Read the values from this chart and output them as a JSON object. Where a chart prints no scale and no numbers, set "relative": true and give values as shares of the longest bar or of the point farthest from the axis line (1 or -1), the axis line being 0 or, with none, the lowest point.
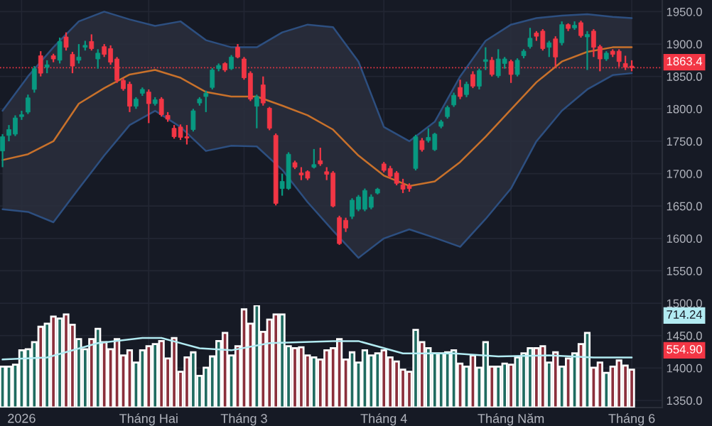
{
  "chart_data": [
    {
      "type": "candlestick",
      "categories": [
        null,
        null,
        null,
        "2026",
        null,
        null,
        null,
        null,
        null,
        null,
        null,
        null,
        null,
        null,
        null,
        null,
        null,
        null,
        null,
        null,
        null,
        null,
        null,
        "Tháng Hai",
        null,
        null,
        null,
        null,
        null,
        null,
        null,
        null,
        null,
        null,
        null,
        null,
        null,
        null,
        "Tháng 3",
        null,
        null,
        null,
        null,
        null,
        null,
        null,
        null,
        null,
        null,
        null,
        null,
        null,
        null,
        null,
        null,
        null,
        null,
        null,
        null,
        null,
        "Tháng 4",
        null,
        null,
        null,
        null,
        null,
        null,
        null,
        null,
        null,
        null,
        null,
        null,
        null,
        null,
        null,
        null,
        null,
        null,
        null,
        "Tháng Năm",
        null,
        null,
        null,
        null,
        null,
        null,
        null,
        null,
        null,
        null,
        null,
        null,
        null,
        null,
        null,
        null,
        null,
        null,
        "Tháng 6"
      ],
      "ohlc": [
        [
          1735,
          1761,
          1710,
          1757
        ],
        [
          1759,
          1775,
          1750,
          1768
        ],
        [
          1761,
          1790,
          1758,
          1786
        ],
        [
          1788,
          1797,
          1783,
          1791
        ],
        [
          1795,
          1822,
          1792,
          1817
        ],
        [
          1830,
          1866,
          1825,
          1862
        ],
        [
          1882,
          1889,
          1850,
          1855
        ],
        [
          1864,
          1875,
          1855,
          1868
        ],
        [
          1882,
          1885,
          1872,
          1877
        ],
        [
          1875,
          1910,
          1870,
          1904
        ],
        [
          1911,
          1918,
          1890,
          1895
        ],
        [
          1884,
          1888,
          1855,
          1866
        ],
        [
          1875,
          1900,
          1870,
          1880
        ],
        [
          1895,
          1905,
          1890,
          1898
        ],
        [
          1904,
          1915,
          1890,
          1893
        ],
        [
          1877,
          1892,
          1862,
          1886
        ],
        [
          1896,
          1900,
          1880,
          1884
        ],
        [
          1893,
          1898,
          1868,
          1872
        ],
        [
          1877,
          1880,
          1840,
          1844
        ],
        [
          1844,
          1847,
          1828,
          1831
        ],
        [
          1838,
          1842,
          1795,
          1804
        ],
        [
          1804,
          1818,
          1800,
          1815
        ],
        [
          1824,
          1833,
          1820,
          1830
        ],
        [
          1826,
          1830,
          1778,
          1808
        ],
        [
          1808,
          1818,
          1805,
          1814
        ],
        [
          1815,
          1818,
          1788,
          1791
        ],
        [
          1790,
          1795,
          1780,
          1784
        ],
        [
          1770,
          1775,
          1754,
          1757
        ],
        [
          1772,
          1776,
          1752,
          1756
        ],
        [
          1757,
          1775,
          1745,
          1755
        ],
        [
          1768,
          1800,
          1765,
          1797
        ],
        [
          1809,
          1818,
          1805,
          1815
        ],
        [
          1819,
          1828,
          1795,
          1824
        ],
        [
          1833,
          1863,
          1830,
          1860
        ],
        [
          1862,
          1870,
          1858,
          1867
        ],
        [
          1870,
          1872,
          1857,
          1860
        ],
        [
          1862,
          1883,
          1860,
          1880
        ],
        [
          1895,
          1900,
          1878,
          1880
        ],
        [
          1877,
          1880,
          1845,
          1848
        ],
        [
          1855,
          1858,
          1812,
          1815
        ],
        [
          1804,
          1822,
          1770,
          1819
        ],
        [
          1837,
          1850,
          1805,
          1809
        ],
        [
          1801,
          1803,
          1767,
          1770
        ],
        [
          1759,
          1762,
          1651,
          1654
        ],
        [
          1677,
          1700,
          1666,
          1688
        ],
        [
          1677,
          1733,
          1675,
          1730
        ],
        [
          1717,
          1720,
          1707,
          1710
        ],
        [
          1701,
          1710,
          1690,
          1698
        ],
        [
          1703,
          1705,
          1690,
          1693
        ],
        [
          1710,
          1738,
          1708,
          1714
        ],
        [
          1720,
          1740,
          1712,
          1715
        ],
        [
          1703,
          1710,
          1690,
          1699
        ],
        [
          1701,
          1704,
          1648,
          1650
        ],
        [
          1632,
          1635,
          1590,
          1592
        ],
        [
          1628,
          1632,
          1610,
          1616
        ],
        [
          1634,
          1662,
          1630,
          1659
        ],
        [
          1645,
          1667,
          1642,
          1664
        ],
        [
          1645,
          1677,
          1642,
          1674
        ],
        [
          1648,
          1668,
          1645,
          1664
        ],
        [
          1670,
          1678,
          1668,
          1676
        ],
        [
          1715,
          1718,
          1702,
          1705
        ],
        [
          1708,
          1712,
          1692,
          1696
        ],
        [
          1701,
          1704,
          1682,
          1685
        ],
        [
          1683,
          1692,
          1670,
          1676
        ],
        [
          1681,
          1685,
          1672,
          1677
        ],
        [
          1708,
          1760,
          1705,
          1757
        ],
        [
          1751,
          1755,
          1734,
          1737
        ],
        [
          1751,
          1770,
          1748,
          1756
        ],
        [
          1737,
          1763,
          1735,
          1761
        ],
        [
          1773,
          1783,
          1770,
          1780
        ],
        [
          1788,
          1805,
          1785,
          1802
        ],
        [
          1806,
          1825,
          1803,
          1821
        ],
        [
          1833,
          1845,
          1815,
          1819
        ],
        [
          1822,
          1842,
          1818,
          1838
        ],
        [
          1853,
          1858,
          1832,
          1835
        ],
        [
          1835,
          1862,
          1830,
          1859
        ],
        [
          1873,
          1895,
          1860,
          1876
        ],
        [
          1875,
          1880,
          1850,
          1853
        ],
        [
          1851,
          1892,
          1848,
          1877
        ],
        [
          1870,
          1880,
          1862,
          1877
        ],
        [
          1873,
          1876,
          1840,
          1853
        ],
        [
          1853,
          1878,
          1850,
          1875
        ],
        [
          1882,
          1892,
          1878,
          1889
        ],
        [
          1896,
          1925,
          1893,
          1909
        ],
        [
          1917,
          1920,
          1905,
          1912
        ],
        [
          1920,
          1923,
          1890,
          1893
        ],
        [
          1895,
          1905,
          1880,
          1902
        ],
        [
          1908,
          1912,
          1865,
          1880
        ],
        [
          1902,
          1935,
          1898,
          1930
        ],
        [
          1930,
          1932,
          1920,
          1924
        ],
        [
          1925,
          1935,
          1922,
          1929
        ],
        [
          1933,
          1936,
          1910,
          1913
        ],
        [
          1911,
          1920,
          1860,
          1915
        ],
        [
          1920,
          1923,
          1880,
          1895
        ],
        [
          1896,
          1899,
          1858,
          1877
        ],
        [
          1877,
          1889,
          1874,
          1886
        ],
        [
          1889,
          1892,
          1880,
          1884
        ],
        [
          1889,
          1892,
          1865,
          1873
        ],
        [
          1870,
          1882,
          1860,
          1864
        ],
        [
          1866,
          1875,
          1858,
          1863.4
        ]
      ],
      "colors": [
        "#089981",
        "#089981",
        "#089981",
        "#089981",
        "#089981",
        "#089981",
        "#f23645",
        "#089981",
        "#f23645",
        "#089981",
        "#f23645",
        "#f23645",
        "#089981",
        "#089981",
        "#f23645",
        "#089981",
        "#f23645",
        "#f23645",
        "#f23645",
        "#f23645",
        "#f23645",
        "#089981",
        "#089981",
        "#f23645",
        "#089981",
        "#f23645",
        "#f23645",
        "#f23645",
        "#f23645",
        "#f23645",
        "#089981",
        "#089981",
        "#089981",
        "#089981",
        "#089981",
        "#f23645",
        "#089981",
        "#f23645",
        "#f23645",
        "#f23645",
        "#089981",
        "#f23645",
        "#f23645",
        "#f23645",
        "#089981",
        "#089981",
        "#f23645",
        "#f23645",
        "#f23645",
        "#089981",
        "#f23645",
        "#f23645",
        "#f23645",
        "#f23645",
        "#f23645",
        "#089981",
        "#089981",
        "#089981",
        "#089981",
        "#089981",
        "#f23645",
        "#f23645",
        "#f23645",
        "#f23645",
        "#f23645",
        "#089981",
        "#f23645",
        "#089981",
        "#089981",
        "#089981",
        "#089981",
        "#089981",
        "#f23645",
        "#089981",
        "#f23645",
        "#089981",
        "#089981",
        "#f23645",
        "#089981",
        "#089981",
        "#f23645",
        "#089981",
        "#089981",
        "#089981",
        "#f23645",
        "#f23645",
        "#089981",
        "#f23645",
        "#089981",
        "#f23645",
        "#089981",
        "#f23645",
        "#089981",
        "#f23645",
        "#f23645",
        "#089981",
        "#f23645",
        "#f23645",
        "#f23645",
        "#f23645"
      ],
      "series": [
        {
          "type": "line",
          "color": "#c8712b",
          "values": [
            1721,
            null,
            null,
            null,
            1730,
            null,
            null,
            null,
            1750,
            null,
            null,
            null,
            1808,
            null,
            null,
            null,
            1832,
            null,
            null,
            null,
            1853,
            null,
            null,
            null,
            1860,
            null,
            null,
            null,
            1848,
            null,
            null,
            null,
            1826,
            null,
            null,
            null,
            1819,
            null,
            null,
            null,
            1819,
            null,
            null,
            null,
            1805,
            null,
            null,
            null,
            1790,
            null,
            null,
            null,
            1768,
            null,
            null,
            null,
            1728,
            null,
            null,
            null,
            1697,
            null,
            null,
            null,
            1681,
            null,
            null,
            null,
            1688,
            null,
            null,
            null,
            1718,
            null,
            null,
            null,
            1757,
            null,
            null,
            null,
            1799,
            null,
            null,
            null,
            1841,
            null,
            null,
            null,
            1873,
            null,
            null,
            null,
            1888,
            null,
            null,
            null,
            1895,
            null,
            null,
            1895
          ],
          "lower": [
            1645,
            null,
            null,
            null,
            1641,
            null,
            null,
            null,
            1625,
            null,
            null,
            null,
            1677,
            null,
            null,
            null,
            1728,
            null,
            null,
            null,
            1775,
            null,
            null,
            null,
            1797,
            null,
            null,
            null,
            1772,
            null,
            null,
            null,
            1735,
            null,
            null,
            null,
            1743,
            null,
            null,
            null,
            1742,
            null,
            null,
            null,
            1706,
            null,
            null,
            null,
            1656,
            null,
            null,
            null,
            1612,
            null,
            null,
            null,
            1570,
            null,
            null,
            null,
            1600,
            null,
            null,
            null,
            1614,
            null,
            null,
            null,
            1601,
            null,
            null,
            null,
            1587,
            null,
            null,
            null,
            1630,
            null,
            null,
            null,
            1677,
            null,
            null,
            null,
            1750,
            null,
            null,
            null,
            1797,
            null,
            null,
            null,
            1830,
            null,
            null,
            null,
            1852,
            null,
            null,
            1855
          ],
          "upper": [
            1797,
            null,
            null,
            null,
            1850,
            null,
            null,
            null,
            1895,
            null,
            null,
            null,
            1935,
            null,
            null,
            null,
            1950,
            null,
            null,
            null,
            1938,
            null,
            null,
            null,
            1928,
            null,
            null,
            null,
            1935,
            null,
            null,
            null,
            1906,
            null,
            null,
            null,
            1895,
            null,
            null,
            null,
            1895,
            null,
            null,
            null,
            1918,
            null,
            null,
            null,
            1930,
            null,
            null,
            null,
            1926,
            null,
            null,
            null,
            1873,
            null,
            null,
            null,
            1772,
            null,
            null,
            null,
            1750,
            null,
            null,
            null,
            1780,
            null,
            null,
            null,
            1850,
            null,
            null,
            null,
            1905,
            null,
            null,
            null,
            1930,
            null,
            null,
            null,
            1940,
            null,
            null,
            null,
            1944,
            null,
            null,
            null,
            1946,
            null,
            null,
            null,
            1942,
            null,
            null,
            1940
          ]
        },
        {
          "type": "line",
          "color": "#2d4f80",
          "values": [
            1797,
            null,
            null,
            null,
            1850,
            null,
            null,
            null,
            1895,
            null,
            null,
            null,
            1935,
            null,
            null,
            null,
            1950,
            null,
            null,
            null,
            1938,
            null,
            null,
            null,
            1928,
            null,
            null,
            null,
            1935,
            null,
            null,
            null,
            1906,
            null,
            null,
            null,
            1895,
            null,
            null,
            null,
            1895,
            null,
            null,
            null,
            1918,
            null,
            null,
            null,
            1930,
            null,
            null,
            null,
            1926,
            null,
            null,
            null,
            1873,
            null,
            null,
            null,
            1772,
            null,
            null,
            null,
            1750,
            null,
            null,
            null,
            1780,
            null,
            null,
            null,
            1850,
            null,
            null,
            null,
            1905,
            null,
            null,
            null,
            1930,
            null,
            null,
            null,
            1940,
            null,
            null,
            null,
            1944,
            null,
            null,
            null,
            1946,
            null,
            null,
            null,
            1942,
            null,
            null,
            1940
          ]
        },
        {
          "type": "line",
          "color": "#2d4f80",
          "values": [
            1645,
            null,
            null,
            null,
            1641,
            null,
            null,
            null,
            1625,
            null,
            null,
            null,
            1677,
            null,
            null,
            null,
            1728,
            null,
            null,
            null,
            1775,
            null,
            null,
            null,
            1797,
            null,
            null,
            null,
            1772,
            null,
            null,
            null,
            1735,
            null,
            null,
            null,
            1743,
            null,
            null,
            null,
            1742,
            null,
            null,
            null,
            1706,
            null,
            null,
            null,
            1656,
            null,
            null,
            null,
            1612,
            null,
            null,
            null,
            1570,
            null,
            null,
            null,
            1600,
            null,
            null,
            null,
            1614,
            null,
            null,
            null,
            1601,
            null,
            null,
            null,
            1587,
            null,
            null,
            null,
            1630,
            null,
            null,
            null,
            1677,
            null,
            null,
            null,
            1750,
            null,
            null,
            null,
            1797,
            null,
            null,
            null,
            1830,
            null,
            null,
            null,
            1852,
            null,
            null,
            1855
          ]
        }
      ],
      "ylim": [
        1339,
        1968
      ],
      "yticks": [
        {
          "value": 1350,
          "label": "1350.0"
        },
        {
          "value": 1400,
          "label": "1400.0"
        },
        {
          "value": 1450,
          "label": "1450.0"
        },
        {
          "value": 1500,
          "label": "1500.0"
        },
        {
          "value": 1550,
          "label": "1550.0"
        },
        {
          "value": 1600,
          "label": "1600.0"
        },
        {
          "value": 1650,
          "label": "1650.0"
        },
        {
          "value": 1700,
          "label": "1700.0"
        },
        {
          "value": 1750,
          "label": "1750.0"
        },
        {
          "value": 1800,
          "label": "1800.0"
        },
        {
          "value": 1850,
          "label": "1850.0"
        },
        {
          "value": 1900,
          "label": "1900.0"
        },
        {
          "value": 1950,
          "label": "1950.0"
        }
      ],
      "ref_lines": [
        {
          "axis": "y",
          "value": 1863.4,
          "label": "1863.4",
          "color": "#f23645",
          "line_style": "dotted"
        }
      ],
      "grid": true
    },
    {
      "type": "bar",
      "relative": true,
      "categories": [
        null,
        null,
        null,
        null,
        null,
        null,
        null,
        null,
        null,
        null,
        null,
        null,
        null,
        null,
        null,
        null,
        null,
        null,
        null,
        null,
        null,
        null,
        null,
        null,
        null,
        null,
        null,
        null,
        null,
        null,
        null,
        null,
        null,
        null,
        null,
        null,
        null,
        null,
        null,
        null,
        null,
        null,
        null,
        null,
        null,
        null,
        null,
        null,
        null,
        null,
        null,
        null,
        null,
        null,
        null,
        null,
        null,
        null,
        null,
        null,
        null,
        null,
        null,
        null,
        null,
        null,
        null,
        null,
        null,
        null,
        null,
        null,
        null,
        null,
        null,
        null,
        null,
        null,
        null,
        null,
        null,
        null,
        null,
        null,
        null,
        null,
        null,
        null,
        null,
        null,
        null,
        null,
        null,
        null,
        null,
        null,
        null,
        null,
        null,
        null
      ],
      "series": [
        {
          "type": "bar",
          "values": [
            0.4,
            0.4,
            0.42,
            0.56,
            0.57,
            0.64,
            0.79,
            0.82,
            0.89,
            0.87,
            0.91,
            0.81,
            0.67,
            0.57,
            0.67,
            0.77,
            0.64,
            0.57,
            0.67,
            0.51,
            0.56,
            0.44,
            0.56,
            0.6,
            0.62,
            0.65,
            0.48,
            0.68,
            0.35,
            0.49,
            0.54,
            0.31,
            0.39,
            0.5,
            0.65,
            0.73,
            0.51,
            0.6,
            0.96,
            0.82,
            1,
            0.74,
            0.86,
            0.91,
            0.91,
            0.6,
            0.58,
            0.59,
            0.51,
            0.49,
            0.47,
            0.56,
            0.58,
            0.67,
            0.47,
            0.54,
            0.44,
            0.56,
            0.51,
            0.53,
            0.56,
            0.49,
            0.45,
            0.37,
            0.35,
            0.76,
            0.64,
            0.58,
            0.53,
            0.53,
            0.54,
            0.56,
            0.43,
            0.4,
            0.51,
            0.39,
            0.64,
            0.4,
            0.4,
            0.43,
            0.42,
            0.49,
            0.53,
            0.58,
            0.58,
            0.6,
            0.44,
            0.54,
            0.4,
            0.48,
            0.53,
            0.62,
            0.73,
            0.39,
            0.44,
            0.34,
            0.4,
            0.46,
            0.41,
            0.37
          ],
          "colors": [
            "#1f6b60",
            "#1f6b60",
            "#1f6b60",
            "#1f6b60",
            "#1f6b60",
            "#1f6b60",
            "#8a2f3b",
            "#1f6b60",
            "#8a2f3b",
            "#1f6b60",
            "#8a2f3b",
            "#8a2f3b",
            "#1f6b60",
            "#1f6b60",
            "#8a2f3b",
            "#1f6b60",
            "#8a2f3b",
            "#8a2f3b",
            "#8a2f3b",
            "#8a2f3b",
            "#8a2f3b",
            "#1f6b60",
            "#1f6b60",
            "#8a2f3b",
            "#1f6b60",
            "#8a2f3b",
            "#8a2f3b",
            "#8a2f3b",
            "#8a2f3b",
            "#8a2f3b",
            "#1f6b60",
            "#1f6b60",
            "#1f6b60",
            "#1f6b60",
            "#1f6b60",
            "#8a2f3b",
            "#1f6b60",
            "#8a2f3b",
            "#8a2f3b",
            "#8a2f3b",
            "#1f6b60",
            "#8a2f3b",
            "#8a2f3b",
            "#8a2f3b",
            "#1f6b60",
            "#1f6b60",
            "#8a2f3b",
            "#8a2f3b",
            "#8a2f3b",
            "#1f6b60",
            "#8a2f3b",
            "#8a2f3b",
            "#8a2f3b",
            "#8a2f3b",
            "#8a2f3b",
            "#1f6b60",
            "#1f6b60",
            "#1f6b60",
            "#1f6b60",
            "#1f6b60",
            "#8a2f3b",
            "#8a2f3b",
            "#8a2f3b",
            "#8a2f3b",
            "#8a2f3b",
            "#1f6b60",
            "#8a2f3b",
            "#1f6b60",
            "#1f6b60",
            "#1f6b60",
            "#1f6b60",
            "#1f6b60",
            "#8a2f3b",
            "#1f6b60",
            "#8a2f3b",
            "#1f6b60",
            "#1f6b60",
            "#8a2f3b",
            "#1f6b60",
            "#1f6b60",
            "#8a2f3b",
            "#1f6b60",
            "#1f6b60",
            "#1f6b60",
            "#8a2f3b",
            "#8a2f3b",
            "#1f6b60",
            "#8a2f3b",
            "#1f6b60",
            "#8a2f3b",
            "#1f6b60",
            "#8a2f3b",
            "#1f6b60",
            "#8a2f3b",
            "#8a2f3b",
            "#1f6b60",
            "#8a2f3b",
            "#8a2f3b",
            "#8a2f3b",
            "#8a2f3b"
          ]
        },
        {
          "type": "line",
          "color": "#b2ebf2",
          "values": [
            0.47,
            null,
            null,
            null,
            null,
            null,
            null,
            0.49,
            null,
            null,
            null,
            null,
            null,
            null,
            null,
            0.63,
            null,
            null,
            null,
            null,
            null,
            null,
            0.68,
            null,
            null,
            0.68,
            null,
            null,
            null,
            null,
            null,
            0.58,
            null,
            null,
            null,
            null,
            0.56,
            null,
            null,
            null,
            null,
            null,
            0.63,
            null,
            null,
            null,
            null,
            null,
            null,
            null,
            null,
            null,
            0.65,
            null,
            null,
            null,
            0.65,
            null,
            null,
            null,
            null,
            null,
            null,
            0.53,
            null,
            null,
            null,
            null,
            null,
            null,
            null,
            0.53,
            null,
            null,
            null,
            null,
            null,
            null,
            0.5,
            null,
            null,
            null,
            null,
            null,
            null,
            null,
            0.51,
            null,
            null,
            null,
            null,
            null,
            null,
            0.49,
            null,
            null,
            null,
            null,
            null,
            0.49
          ]
        }
      ],
      "annotations": [
        "714.24",
        "554.90"
      ]
    }
  ]
}
